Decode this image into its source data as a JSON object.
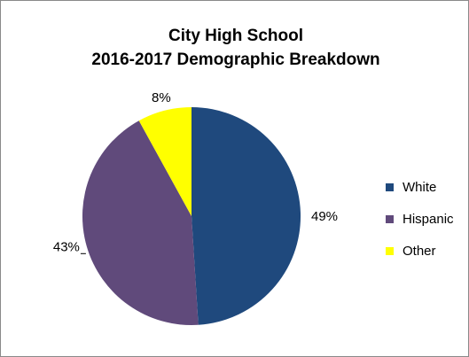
{
  "colors": {
    "white": "#1f497d",
    "hispanic": "#604a7b",
    "other": "#ffff00"
  },
  "chart_data": {
    "type": "pie",
    "title": [
      "City High School",
      "2016-2017 Demographic Breakdown"
    ],
    "categories": [
      "White",
      "Hispanic",
      "Other"
    ],
    "values": [
      49,
      43,
      8
    ],
    "labels": [
      "49%",
      "43%",
      "8%"
    ],
    "colors": [
      "#1f497d",
      "#604a7b",
      "#ffff00"
    ],
    "legend_position": "right",
    "start": "top, clockwise"
  }
}
